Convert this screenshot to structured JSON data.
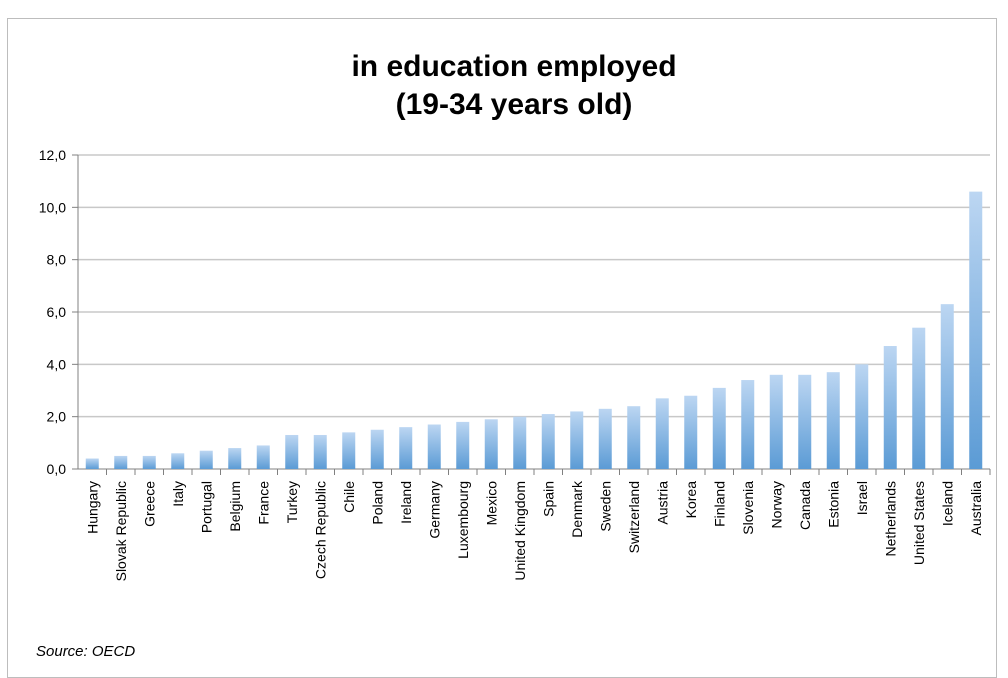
{
  "chart_data": {
    "type": "bar",
    "title_lines": [
      "in education employed",
      "(19-34 years old)"
    ],
    "xlabel": "",
    "ylabel": "",
    "ylim": [
      0,
      12
    ],
    "yticks": [
      "0,0",
      "2,0",
      "4,0",
      "6,0",
      "8,0",
      "10,0",
      "12,0"
    ],
    "grid": true,
    "legend": "none",
    "categories": [
      "Hungary",
      "Slovak Republic",
      "Greece",
      "Italy",
      "Portugal",
      "Belgium",
      "France",
      "Turkey",
      "Czech Republic",
      "Chile",
      "Poland",
      "Ireland",
      "Germany",
      "Luxembourg",
      "Mexico",
      "United Kingdom",
      "Spain",
      "Denmark",
      "Sweden",
      "Switzerland",
      "Austria",
      "Korea",
      "Finland",
      "Slovenia",
      "Norway",
      "Canada",
      "Estonia",
      "Israel",
      "Netherlands",
      "United States",
      "Iceland",
      "Australia"
    ],
    "values": [
      0.4,
      0.5,
      0.5,
      0.6,
      0.7,
      0.8,
      0.9,
      1.3,
      1.3,
      1.4,
      1.5,
      1.6,
      1.7,
      1.8,
      1.9,
      2.0,
      2.1,
      2.2,
      2.3,
      2.4,
      2.7,
      2.8,
      3.1,
      3.4,
      3.6,
      3.6,
      3.7,
      4.0,
      4.7,
      5.4,
      6.3,
      10.6
    ],
    "bar_color_top": "#bcd6f2",
    "bar_color_bottom": "#5b9bd5",
    "gridline_color": "#c8c8c8",
    "source": "Source: OECD"
  }
}
